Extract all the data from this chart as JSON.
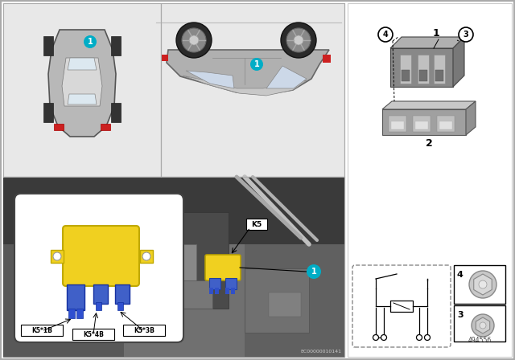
{
  "bg_color": "#f5f5f5",
  "cyan_color": "#00adc6",
  "yellow_color": "#f0d020",
  "blue_color": "#4060c8",
  "dark_gray": "#606060",
  "mid_gray": "#909090",
  "light_gray": "#c8c8c8",
  "panel_bg": "#e8e8e8",
  "engine_bg": "#787878",
  "white": "#ffffff",
  "black": "#000000",
  "red_accent": "#cc2020",
  "doc_number": "EC00000010141",
  "part_number": "494556",
  "connector_labels": [
    "K5*1B",
    "K5*4B",
    "K5*3B"
  ],
  "tl_panel": [
    4,
    228,
    196,
    216
  ],
  "tr_panel": [
    200,
    228,
    228,
    216
  ],
  "bl_panel": [
    4,
    4,
    424,
    224
  ],
  "rp_panel": [
    432,
    4,
    204,
    440
  ]
}
